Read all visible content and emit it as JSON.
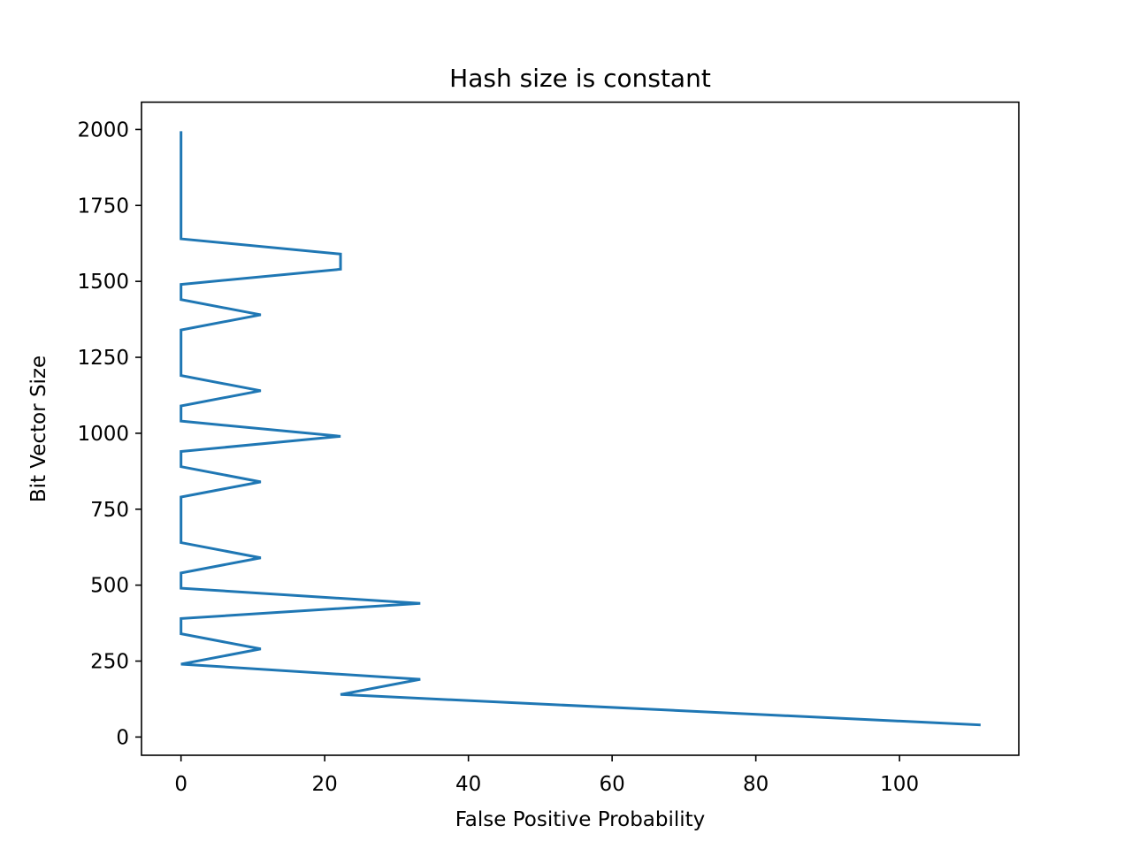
{
  "chart_data": {
    "type": "line",
    "title": "Hash size is constant",
    "xlabel": "False Positive Probability",
    "ylabel": "Bit Vector Size",
    "xlim": [
      -5.5,
      116.6
    ],
    "ylim": [
      -60,
      2090
    ],
    "xticks": [
      0,
      20,
      40,
      60,
      80,
      100
    ],
    "yticks": [
      0,
      250,
      500,
      750,
      1000,
      1250,
      1500,
      1750,
      2000
    ],
    "grid": false,
    "series": [
      {
        "color": "#1f77b4",
        "points": [
          {
            "x": 111.1,
            "y": 40
          },
          {
            "x": 22.2,
            "y": 140
          },
          {
            "x": 33.3,
            "y": 190
          },
          {
            "x": 0.0,
            "y": 240
          },
          {
            "x": 11.1,
            "y": 290
          },
          {
            "x": 0.0,
            "y": 340
          },
          {
            "x": 0.0,
            "y": 390
          },
          {
            "x": 33.3,
            "y": 440
          },
          {
            "x": 0.0,
            "y": 490
          },
          {
            "x": 0.0,
            "y": 540
          },
          {
            "x": 11.1,
            "y": 590
          },
          {
            "x": 0.0,
            "y": 640
          },
          {
            "x": 0.0,
            "y": 690
          },
          {
            "x": 0.0,
            "y": 740
          },
          {
            "x": 0.0,
            "y": 790
          },
          {
            "x": 11.1,
            "y": 840
          },
          {
            "x": 0.0,
            "y": 890
          },
          {
            "x": 0.0,
            "y": 940
          },
          {
            "x": 22.2,
            "y": 990
          },
          {
            "x": 0.0,
            "y": 1040
          },
          {
            "x": 0.0,
            "y": 1090
          },
          {
            "x": 11.1,
            "y": 1140
          },
          {
            "x": 0.0,
            "y": 1190
          },
          {
            "x": 0.0,
            "y": 1240
          },
          {
            "x": 0.0,
            "y": 1290
          },
          {
            "x": 0.0,
            "y": 1340
          },
          {
            "x": 11.1,
            "y": 1390
          },
          {
            "x": 0.0,
            "y": 1440
          },
          {
            "x": 0.0,
            "y": 1490
          },
          {
            "x": 22.2,
            "y": 1540
          },
          {
            "x": 22.2,
            "y": 1590
          },
          {
            "x": 0.0,
            "y": 1640
          },
          {
            "x": 0.0,
            "y": 1690
          },
          {
            "x": 0.0,
            "y": 1740
          },
          {
            "x": 0.0,
            "y": 1790
          },
          {
            "x": 0.0,
            "y": 1840
          },
          {
            "x": 0.0,
            "y": 1890
          },
          {
            "x": 0.0,
            "y": 1940
          },
          {
            "x": 0.0,
            "y": 1990
          }
        ]
      }
    ]
  }
}
